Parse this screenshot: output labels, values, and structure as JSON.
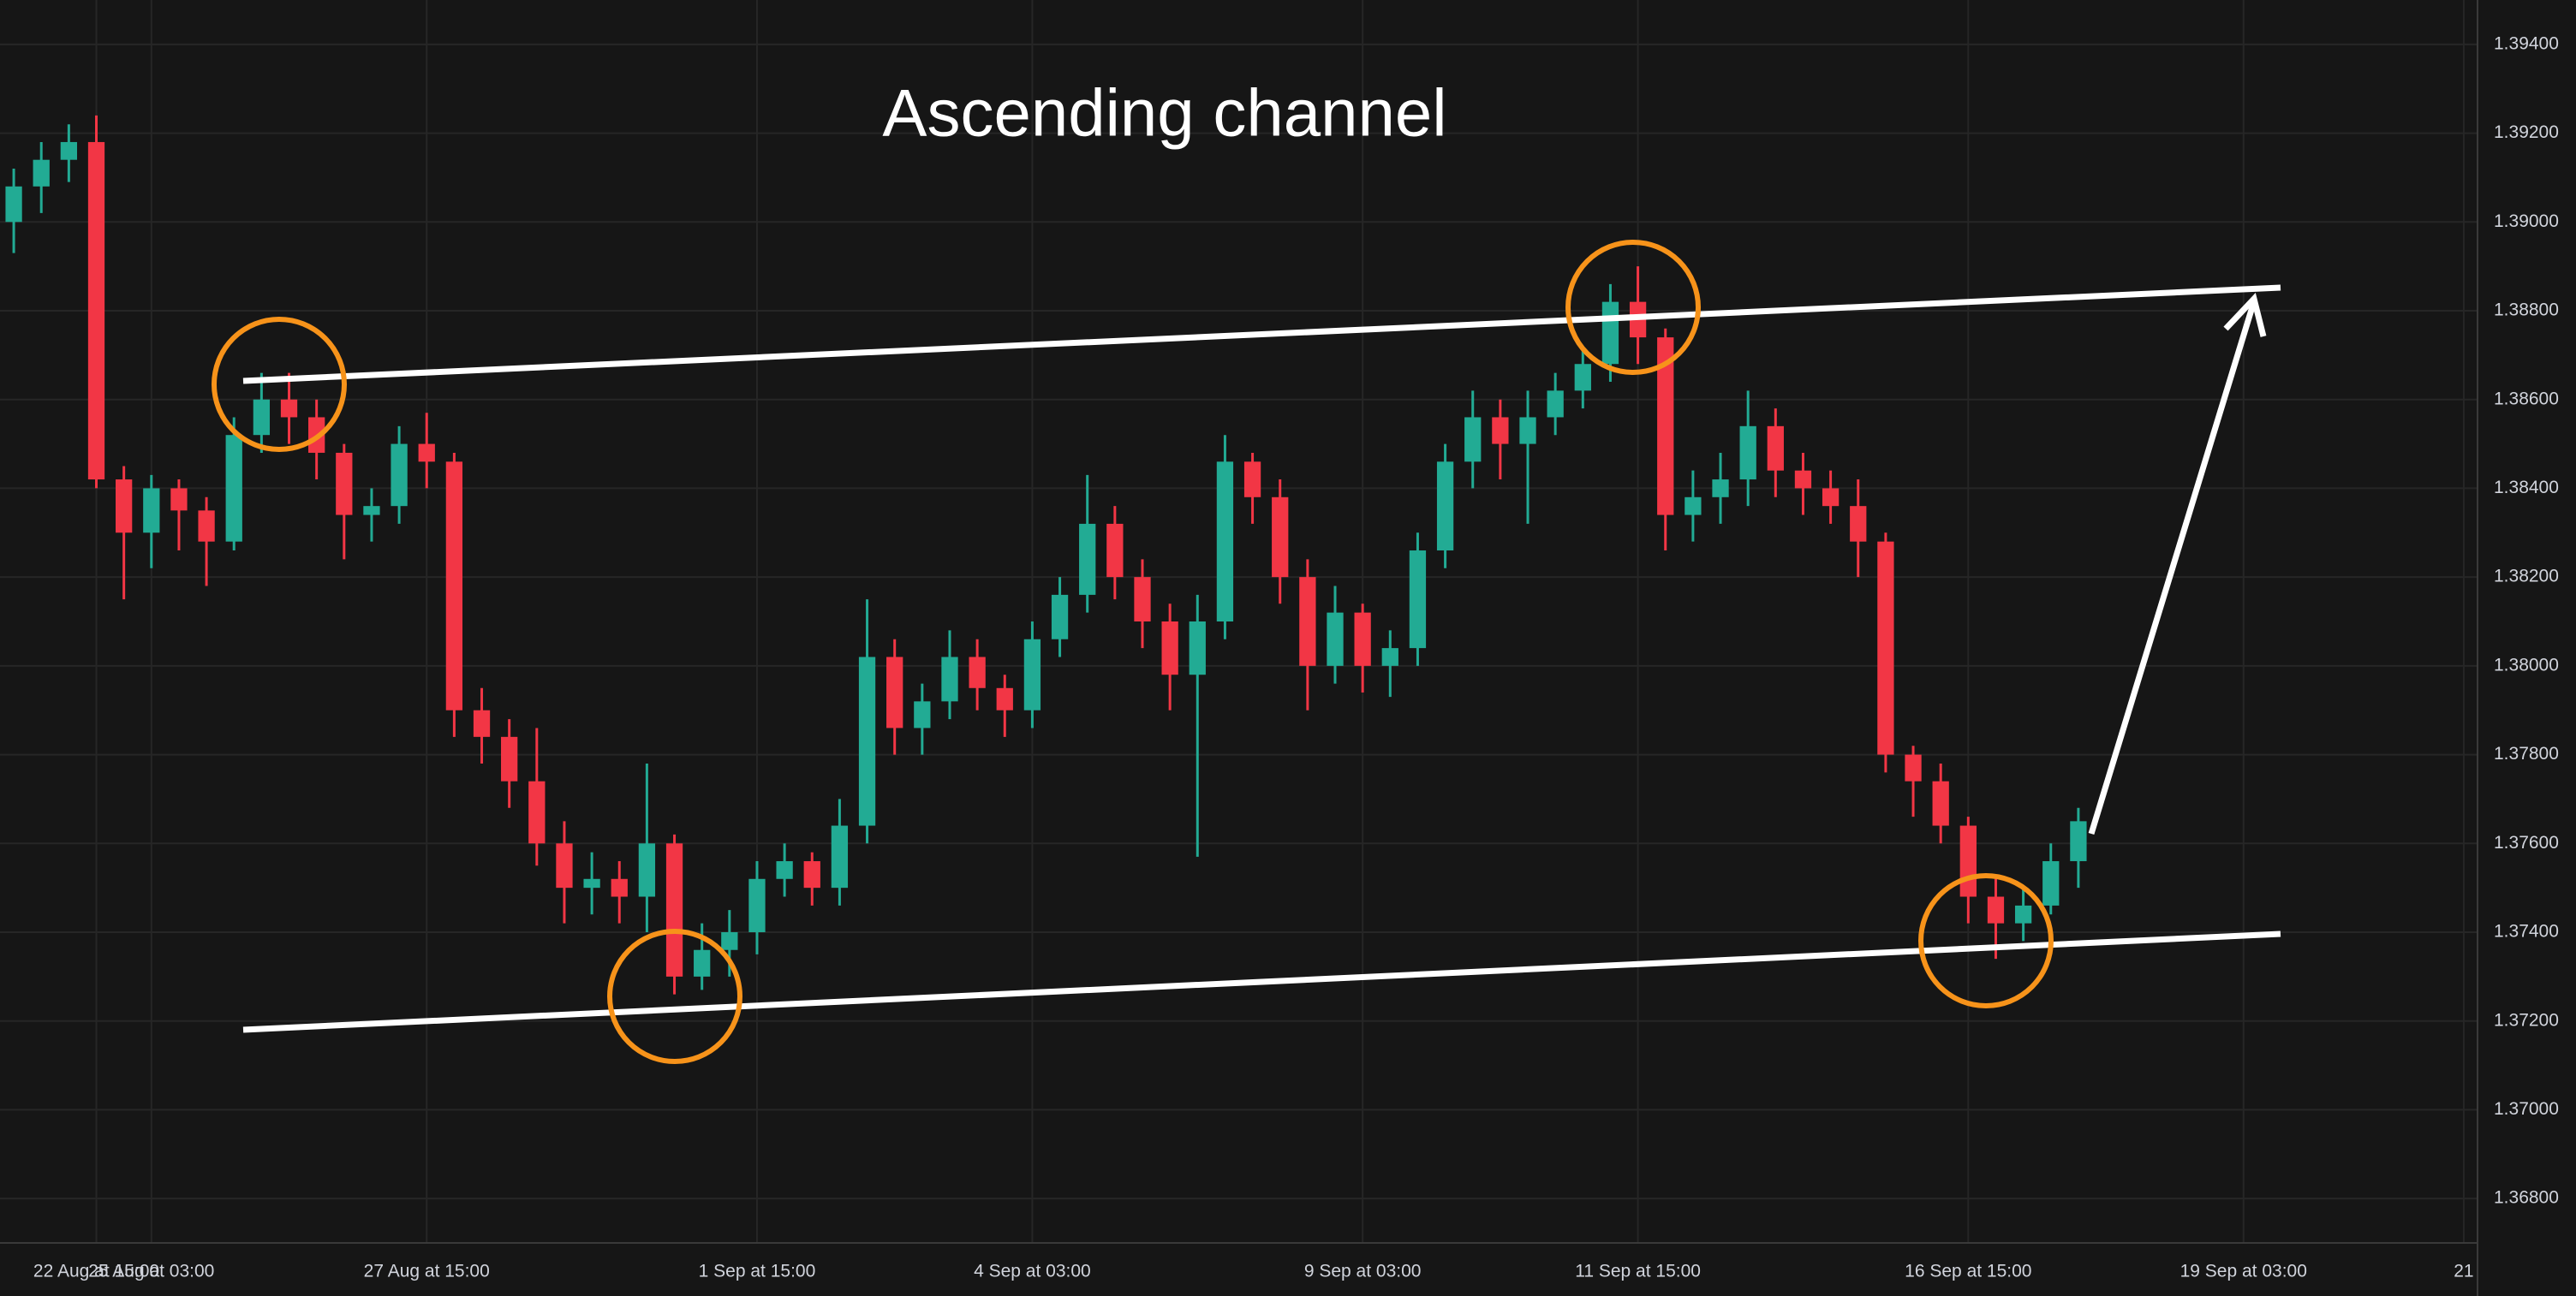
{
  "chart_data": {
    "type": "candlestick",
    "title": "Ascending channel",
    "categories": [
      null,
      null,
      null,
      "22 Aug at 15:00",
      null,
      "25 Aug at 03:00",
      null,
      null,
      null,
      null,
      null,
      null,
      null,
      null,
      null,
      "27 Aug at 15:00",
      null,
      null,
      null,
      null,
      null,
      null,
      null,
      null,
      null,
      null,
      null,
      "1 Sep at 15:00",
      null,
      null,
      null,
      null,
      null,
      null,
      null,
      null,
      null,
      "4 Sep at 03:00",
      null,
      null,
      null,
      null,
      null,
      null,
      null,
      null,
      null,
      null,
      null,
      "9 Sep at 03:00",
      null,
      null,
      null,
      null,
      null,
      null,
      null,
      null,
      null,
      "11 Sep at 15:00",
      null,
      null,
      null,
      null,
      null,
      null,
      null,
      null,
      null,
      null,
      null,
      "16 Sep at 15:00",
      null,
      null,
      null,
      null,
      null,
      null,
      null,
      null,
      null,
      "19 Sep at 03:00",
      null,
      null,
      null,
      null,
      null,
      null,
      null,
      "21"
    ],
    "open": [
      1.39,
      1.3908,
      1.3914,
      1.3918,
      1.3842,
      1.383,
      1.384,
      1.3835,
      1.3828,
      1.3852,
      1.386,
      1.3856,
      1.3848,
      1.3834,
      1.3836,
      1.385,
      1.3846,
      1.379,
      1.3784,
      1.3774,
      1.376,
      1.375,
      1.3752,
      1.3748,
      1.376,
      1.373,
      1.3736,
      1.374,
      1.3752,
      1.3756,
      1.375,
      1.3764,
      1.3802,
      1.3786,
      1.3792,
      1.3802,
      1.3795,
      1.379,
      1.3806,
      1.3816,
      1.3832,
      1.382,
      1.381,
      1.3798,
      1.381,
      1.3846,
      1.3838,
      1.382,
      1.38,
      1.3812,
      1.38,
      1.3804,
      1.3826,
      1.3846,
      1.3856,
      1.385,
      1.3856,
      1.3862,
      1.3868,
      1.3882,
      1.3874,
      1.3834,
      1.3838,
      1.3842,
      1.3854,
      1.3844,
      1.384,
      1.3836,
      1.3828,
      1.378,
      1.3774,
      1.3764,
      1.3748,
      1.3742,
      1.3746,
      1.3756,
      null,
      null,
      null,
      null,
      null,
      null,
      null,
      null,
      null,
      null,
      null,
      null,
      null,
      null
    ],
    "high": [
      1.3912,
      1.3918,
      1.3922,
      1.3924,
      1.3845,
      1.3843,
      1.3842,
      1.3838,
      1.3856,
      1.3866,
      1.3866,
      1.386,
      1.385,
      1.384,
      1.3854,
      1.3857,
      1.3848,
      1.3795,
      1.3788,
      1.3786,
      1.3765,
      1.3758,
      1.3756,
      1.3778,
      1.3762,
      1.3742,
      1.3745,
      1.3756,
      1.376,
      1.3758,
      1.377,
      1.3815,
      1.3806,
      1.3796,
      1.3808,
      1.3806,
      1.3798,
      1.381,
      1.382,
      1.3843,
      1.3836,
      1.3824,
      1.3814,
      1.3816,
      1.3852,
      1.3848,
      1.3842,
      1.3824,
      1.3818,
      1.3814,
      1.3808,
      1.383,
      1.385,
      1.3862,
      1.386,
      1.3862,
      1.3866,
      1.3872,
      1.3886,
      1.389,
      1.3876,
      1.3844,
      1.3848,
      1.3862,
      1.3858,
      1.3848,
      1.3844,
      1.3842,
      1.383,
      1.3782,
      1.3778,
      1.3766,
      1.3752,
      1.375,
      1.376,
      1.3768,
      null,
      null,
      null,
      null,
      null,
      null,
      null,
      null,
      null,
      null,
      null,
      null,
      null,
      null
    ],
    "low": [
      1.3893,
      1.3902,
      1.3909,
      1.384,
      1.3815,
      1.3822,
      1.3826,
      1.3818,
      1.3826,
      1.3848,
      1.385,
      1.3842,
      1.3824,
      1.3828,
      1.3832,
      1.384,
      1.3784,
      1.3778,
      1.3768,
      1.3755,
      1.3742,
      1.3744,
      1.3742,
      1.374,
      1.3726,
      1.3727,
      1.373,
      1.3735,
      1.3748,
      1.3746,
      1.3746,
      1.376,
      1.378,
      1.378,
      1.3788,
      1.379,
      1.3784,
      1.3786,
      1.3802,
      1.3812,
      1.3815,
      1.3804,
      1.379,
      1.3757,
      1.3806,
      1.3832,
      1.3814,
      1.379,
      1.3796,
      1.3794,
      1.3793,
      1.38,
      1.3822,
      1.384,
      1.3842,
      1.3832,
      1.3852,
      1.3858,
      1.3864,
      1.3868,
      1.3826,
      1.3828,
      1.3832,
      1.3836,
      1.3838,
      1.3834,
      1.3832,
      1.382,
      1.3776,
      1.3766,
      1.376,
      1.3742,
      1.3734,
      1.3738,
      1.3744,
      1.375,
      null,
      null,
      null,
      null,
      null,
      null,
      null,
      null,
      null,
      null,
      null,
      null,
      null,
      null
    ],
    "close": [
      1.3908,
      1.3914,
      1.3918,
      1.3842,
      1.383,
      1.384,
      1.3835,
      1.3828,
      1.3852,
      1.386,
      1.3856,
      1.3848,
      1.3834,
      1.3836,
      1.385,
      1.3846,
      1.379,
      1.3784,
      1.3774,
      1.376,
      1.375,
      1.3752,
      1.3748,
      1.376,
      1.373,
      1.3736,
      1.374,
      1.3752,
      1.3756,
      1.375,
      1.3764,
      1.3802,
      1.3786,
      1.3792,
      1.3802,
      1.3795,
      1.379,
      1.3806,
      1.3816,
      1.3832,
      1.382,
      1.381,
      1.3798,
      1.381,
      1.3846,
      1.3838,
      1.382,
      1.38,
      1.3812,
      1.38,
      1.3804,
      1.3826,
      1.3846,
      1.3856,
      1.385,
      1.3856,
      1.3862,
      1.3868,
      1.3882,
      1.3874,
      1.3834,
      1.3838,
      1.3842,
      1.3854,
      1.3844,
      1.384,
      1.3836,
      1.3828,
      1.378,
      1.3774,
      1.3764,
      1.3748,
      1.3742,
      1.3746,
      1.3756,
      1.3765,
      null,
      null,
      null,
      null,
      null,
      null,
      null,
      null,
      null,
      null,
      null,
      null,
      null,
      null
    ],
    "up_color": "#22ab94",
    "down_color": "#f23645",
    "ylim": [
      1.367,
      1.395
    ],
    "yticks": [
      {
        "value": 1.368,
        "label": "1.36800"
      },
      {
        "value": 1.37,
        "label": "1.37000"
      },
      {
        "value": 1.372,
        "label": "1.37200"
      },
      {
        "value": 1.374,
        "label": "1.37400"
      },
      {
        "value": 1.376,
        "label": "1.37600"
      },
      {
        "value": 1.378,
        "label": "1.37800"
      },
      {
        "value": 1.38,
        "label": "1.38000"
      },
      {
        "value": 1.382,
        "label": "1.38200"
      },
      {
        "value": 1.384,
        "label": "1.38400"
      },
      {
        "value": 1.386,
        "label": "1.38600"
      },
      {
        "value": 1.388,
        "label": "1.38800"
      },
      {
        "value": 1.39,
        "label": "1.39000"
      },
      {
        "value": 1.392,
        "label": "1.39200"
      },
      {
        "value": 1.394,
        "label": "1.39400"
      }
    ],
    "grid": true
  }
}
